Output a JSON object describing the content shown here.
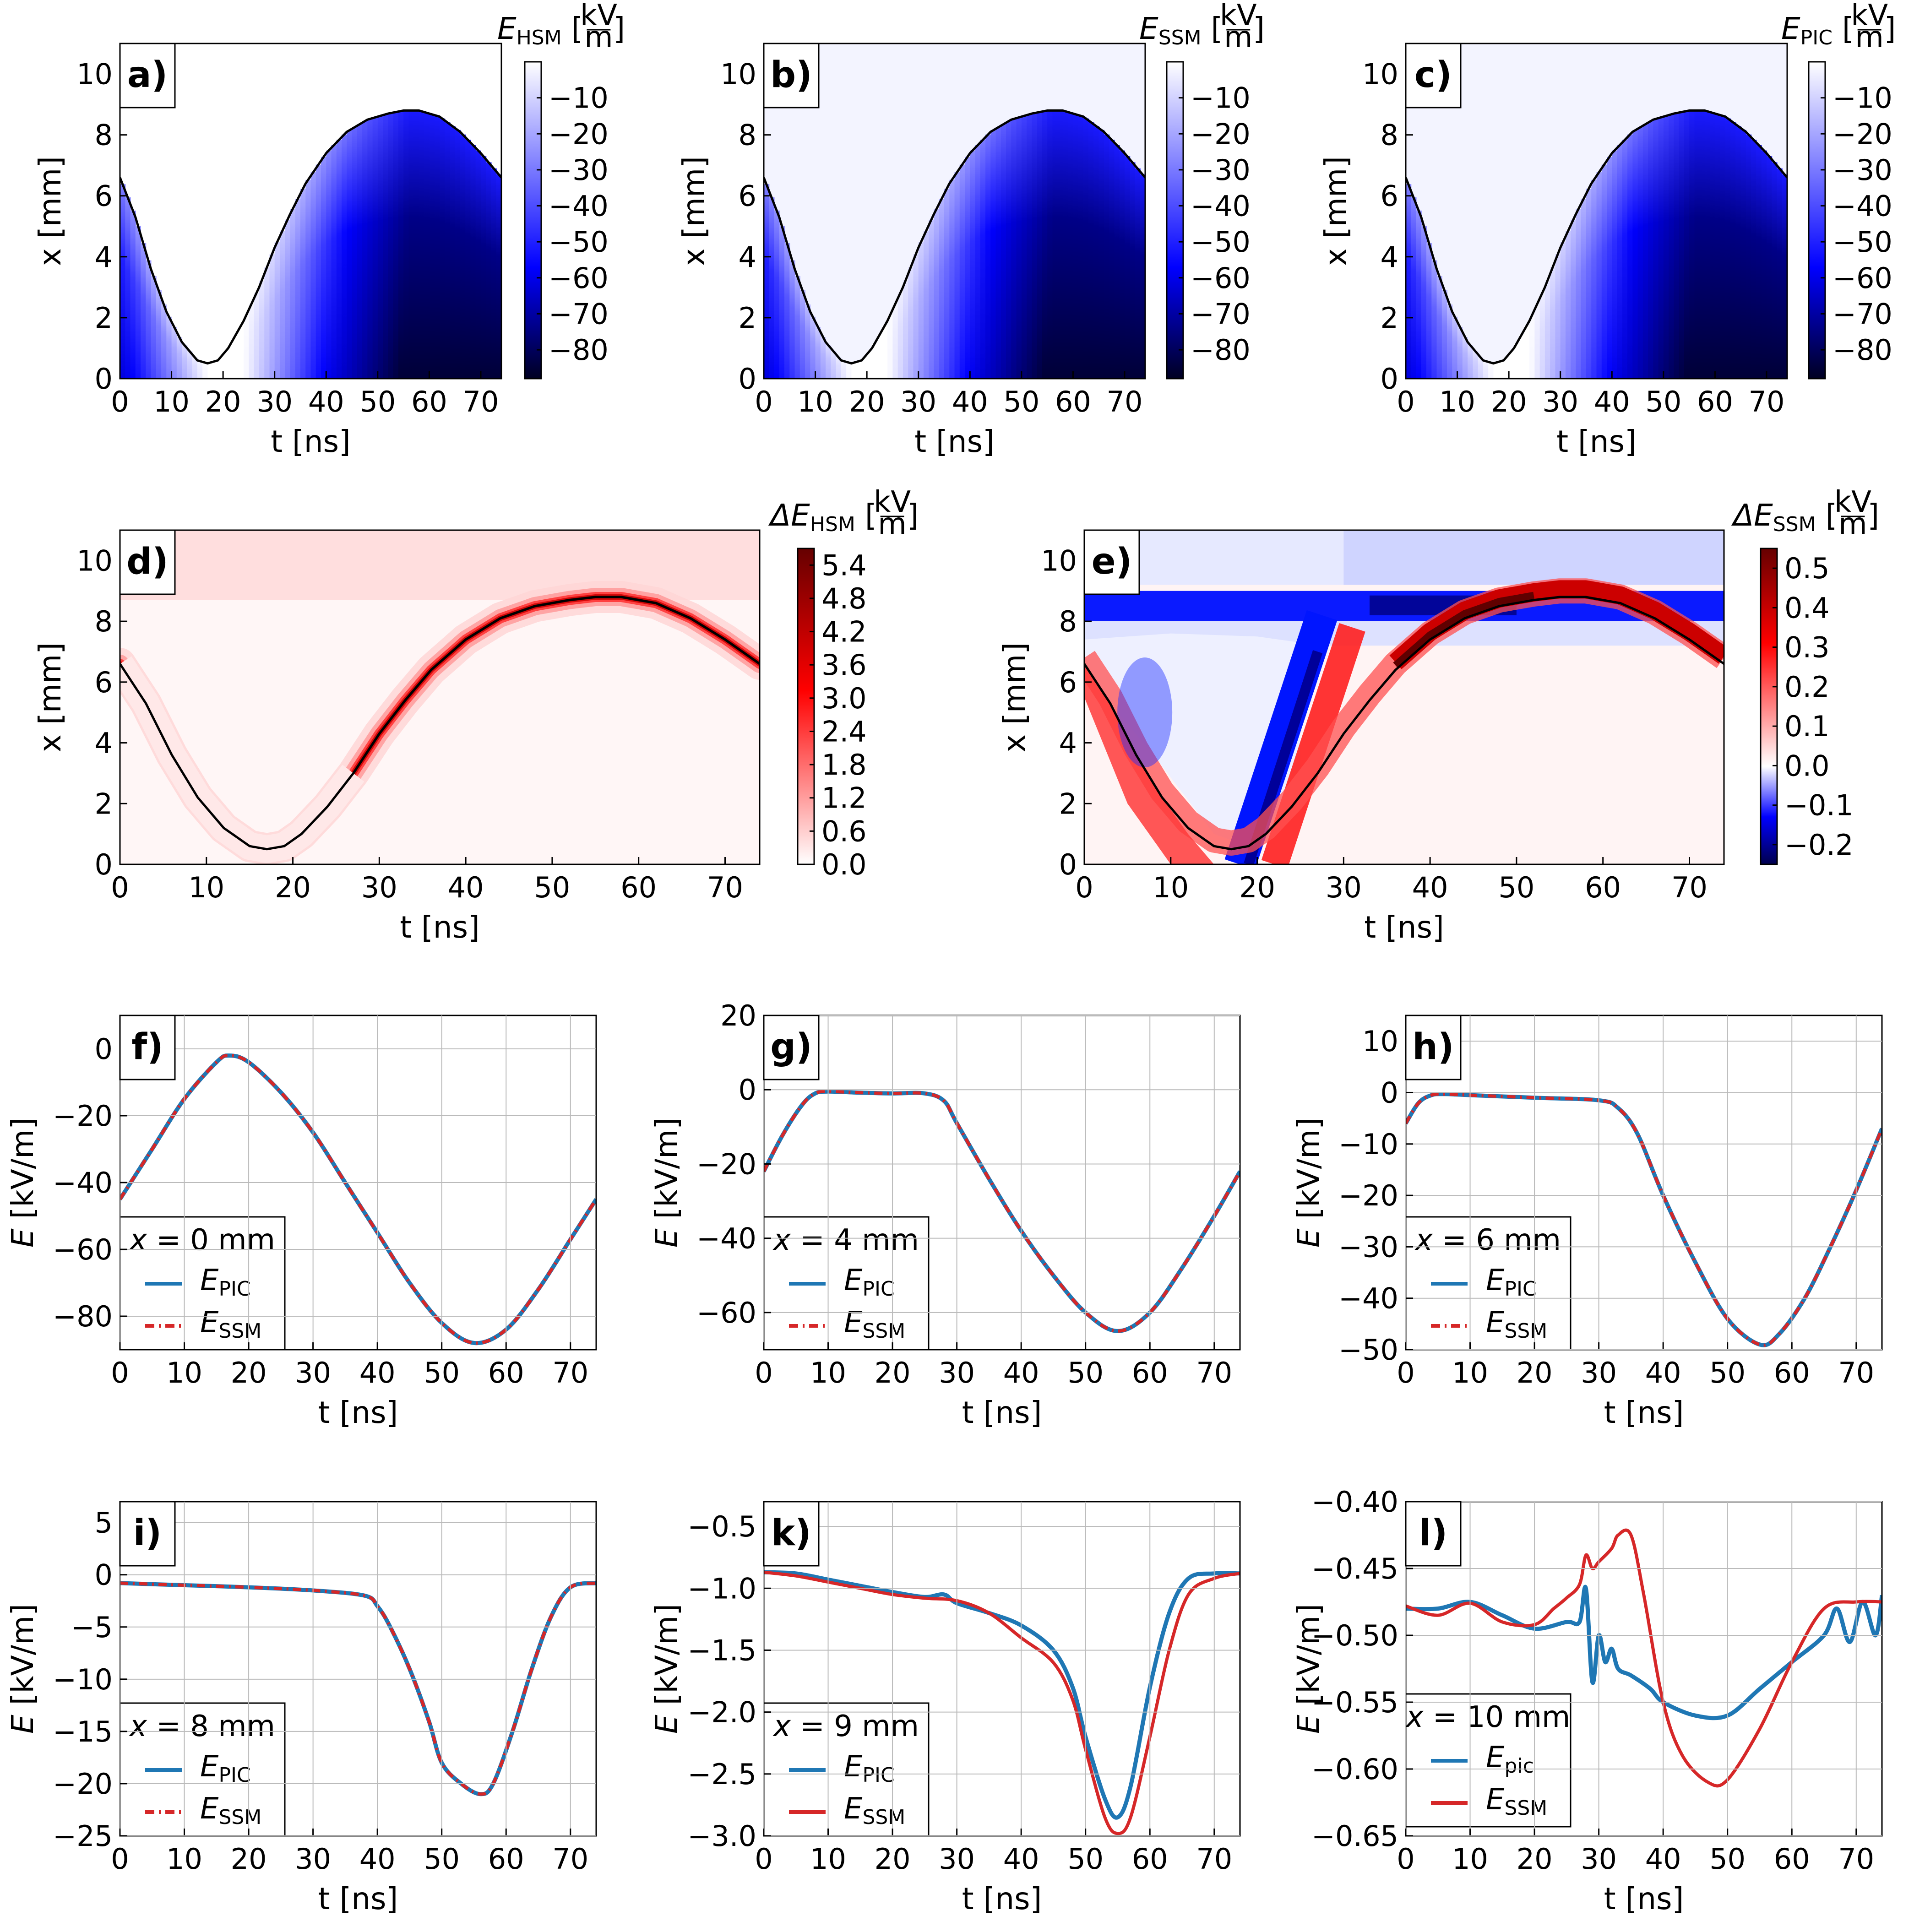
{
  "colors": {
    "blue_cmap": [
      "#000022",
      "#0000ff",
      "#ffffff"
    ],
    "seismic_cmap": [
      "#00004d",
      "#0000ff",
      "#ffffff",
      "#ff0000",
      "#660000"
    ],
    "pic_line": "#1f77b4",
    "ssm_line": "#d62728",
    "boundary": "#000000"
  },
  "chart_data": [
    {
      "id": "a",
      "type": "heatmap",
      "tag": "a)",
      "xlabel": "t [ns]",
      "ylabel": "x [mm]",
      "xlim": [
        0,
        74
      ],
      "ylim": [
        0,
        11
      ],
      "xticks": [
        "0",
        "10",
        "20",
        "30",
        "40",
        "50",
        "60",
        "70"
      ],
      "yticks": [
        "0",
        "2",
        "4",
        "6",
        "8",
        "10"
      ],
      "colorbar": {
        "label": "E_HSM [kV/m]",
        "label_main": "E",
        "label_sub": "HSM",
        "unit_num": "kV",
        "unit_den": "m",
        "range": [
          -88,
          0
        ],
        "ticks": [
          "−10",
          "−20",
          "−30",
          "−40",
          "−50",
          "−60",
          "−70",
          "−80"
        ],
        "cmap": "blue"
      }
    },
    {
      "id": "b",
      "type": "heatmap",
      "tag": "b)",
      "xlabel": "t [ns]",
      "ylabel": "x [mm]",
      "xlim": [
        0,
        74
      ],
      "ylim": [
        0,
        11
      ],
      "xticks": [
        "0",
        "10",
        "20",
        "30",
        "40",
        "50",
        "60",
        "70"
      ],
      "yticks": [
        "0",
        "2",
        "4",
        "6",
        "8",
        "10"
      ],
      "colorbar": {
        "label": "E_SSM [kV/m]",
        "label_main": "E",
        "label_sub": "SSM",
        "unit_num": "kV",
        "unit_den": "m",
        "range": [
          -88,
          0
        ],
        "ticks": [
          "−10",
          "−20",
          "−30",
          "−40",
          "−50",
          "−60",
          "−70",
          "−80"
        ],
        "cmap": "blue"
      }
    },
    {
      "id": "c",
      "type": "heatmap",
      "tag": "c)",
      "xlabel": "t [ns]",
      "ylabel": "x [mm]",
      "xlim": [
        0,
        74
      ],
      "ylim": [
        0,
        11
      ],
      "xticks": [
        "0",
        "10",
        "20",
        "30",
        "40",
        "50",
        "60",
        "70"
      ],
      "yticks": [
        "0",
        "2",
        "4",
        "6",
        "8",
        "10"
      ],
      "colorbar": {
        "label": "E_PIC [kV/m]",
        "label_main": "E",
        "label_sub": "PIC",
        "unit_num": "kV",
        "unit_den": "m",
        "range": [
          -88,
          0
        ],
        "ticks": [
          "−10",
          "−20",
          "−30",
          "−40",
          "−50",
          "−60",
          "−70",
          "−80"
        ],
        "cmap": "blue"
      }
    },
    {
      "id": "d",
      "type": "heatmap",
      "tag": "d)",
      "xlabel": "t [ns]",
      "ylabel": "x [mm]",
      "xlim": [
        0,
        74
      ],
      "ylim": [
        0,
        11
      ],
      "xticks": [
        "0",
        "10",
        "20",
        "30",
        "40",
        "50",
        "60",
        "70"
      ],
      "yticks": [
        "0",
        "2",
        "4",
        "6",
        "8",
        "10"
      ],
      "colorbar": {
        "label": "ΔE_HSM [kV/m]",
        "label_main": "ΔE",
        "label_sub": "HSM",
        "unit_num": "kV",
        "unit_den": "m",
        "range": [
          0,
          5.7
        ],
        "ticks": [
          "5.4",
          "4.8",
          "4.2",
          "3.6",
          "3.0",
          "2.4",
          "1.8",
          "1.2",
          "0.6",
          "0.0"
        ],
        "cmap": "red"
      }
    },
    {
      "id": "e",
      "type": "heatmap",
      "tag": "e)",
      "xlabel": "t [ns]",
      "ylabel": "x [mm]",
      "xlim": [
        0,
        74
      ],
      "ylim": [
        0,
        11
      ],
      "xticks": [
        "0",
        "10",
        "20",
        "30",
        "40",
        "50",
        "60",
        "70"
      ],
      "yticks": [
        "0",
        "2",
        "4",
        "6",
        "8",
        "10"
      ],
      "colorbar": {
        "label": "ΔE_SSM [kV/m]",
        "label_main": "ΔE",
        "label_sub": "SSM",
        "unit_num": "kV",
        "unit_den": "m",
        "range": [
          -0.25,
          0.55
        ],
        "ticks": [
          "0.5",
          "0.4",
          "0.3",
          "0.2",
          "0.1",
          "0.0",
          "−0.1",
          "−0.2"
        ],
        "cmap": "seismic"
      }
    },
    {
      "id": "f",
      "type": "line",
      "tag": "f)",
      "xlabel": "t [ns]",
      "ylabel": "E [kV/m]",
      "xlim": [
        0,
        74
      ],
      "ylim": [
        -90,
        10
      ],
      "xticks": [
        "0",
        "10",
        "20",
        "30",
        "40",
        "50",
        "60",
        "70"
      ],
      "yticks": [
        "0",
        "−20",
        "−40",
        "−60",
        "−80"
      ],
      "legend": {
        "title": "x = 0 mm",
        "title_var": "x",
        "title_rest": " = 0 mm",
        "entries": [
          {
            "main": "E",
            "sub": "PIC"
          },
          {
            "main": "E",
            "sub": "SSM"
          }
        ]
      },
      "series": [
        {
          "name": "E_PIC",
          "x": [
            0,
            5,
            10,
            15,
            17,
            20,
            25,
            30,
            35,
            40,
            45,
            50,
            55,
            60,
            65,
            70,
            74
          ],
          "values": [
            -45,
            -30,
            -15,
            -4,
            -2,
            -4,
            -13,
            -25,
            -40,
            -55,
            -70,
            -82,
            -88,
            -84,
            -72,
            -57,
            -45
          ]
        },
        {
          "name": "E_SSM",
          "x": [
            0,
            5,
            10,
            15,
            17,
            20,
            25,
            30,
            35,
            40,
            45,
            50,
            55,
            60,
            65,
            70,
            74
          ],
          "values": [
            -45,
            -30,
            -15,
            -4,
            -2,
            -4,
            -13,
            -25,
            -40,
            -55,
            -70,
            -82,
            -88,
            -84,
            -72,
            -57,
            -45
          ]
        }
      ]
    },
    {
      "id": "g",
      "type": "line",
      "tag": "g)",
      "xlabel": "t [ns]",
      "ylabel": "E [kV/m]",
      "xlim": [
        0,
        74
      ],
      "ylim": [
        -70,
        20
      ],
      "xticks": [
        "0",
        "10",
        "20",
        "30",
        "40",
        "50",
        "60",
        "70"
      ],
      "yticks": [
        "20",
        "0",
        "−20",
        "−40",
        "−60"
      ],
      "legend": {
        "title": "x = 4 mm",
        "title_var": "x",
        "title_rest": " = 4 mm",
        "entries": [
          {
            "main": "E",
            "sub": "PIC"
          },
          {
            "main": "E",
            "sub": "SSM"
          }
        ]
      },
      "series": [
        {
          "name": "E_PIC",
          "x": [
            0,
            3,
            6,
            8,
            10,
            15,
            20,
            25,
            28,
            30,
            35,
            40,
            45,
            50,
            55,
            60,
            65,
            70,
            74
          ],
          "values": [
            -22,
            -12,
            -4,
            -1,
            -0.5,
            -0.8,
            -1,
            -1,
            -3,
            -9,
            -24,
            -38,
            -50,
            -60,
            -65,
            -60,
            -48,
            -34,
            -22
          ]
        },
        {
          "name": "E_SSM",
          "x": [
            0,
            3,
            6,
            8,
            10,
            15,
            20,
            25,
            28,
            30,
            35,
            40,
            45,
            50,
            55,
            60,
            65,
            70,
            74
          ],
          "values": [
            -22,
            -12,
            -4,
            -1,
            -0.5,
            -0.8,
            -1,
            -1,
            -3,
            -9,
            -24,
            -38,
            -50,
            -60,
            -65,
            -60,
            -48,
            -34,
            -22
          ]
        }
      ]
    },
    {
      "id": "h",
      "type": "line",
      "tag": "h)",
      "xlabel": "t [ns]",
      "ylabel": "E [kV/m]",
      "xlim": [
        0,
        74
      ],
      "ylim": [
        -50,
        15
      ],
      "xticks": [
        "0",
        "10",
        "20",
        "30",
        "40",
        "50",
        "60",
        "70"
      ],
      "yticks": [
        "10",
        "0",
        "−10",
        "−20",
        "−30",
        "−40",
        "−50"
      ],
      "legend": {
        "title": "x = 6 mm",
        "title_var": "x",
        "title_rest": " = 6 mm",
        "entries": [
          {
            "main": "E",
            "sub": "PIC"
          },
          {
            "main": "E",
            "sub": "SSM"
          }
        ]
      },
      "series": [
        {
          "name": "E_PIC",
          "x": [
            0,
            2,
            4,
            6,
            10,
            20,
            30,
            33,
            36,
            40,
            45,
            50,
            55,
            58,
            62,
            66,
            70,
            74
          ],
          "values": [
            -6,
            -2,
            -0.5,
            -0.3,
            -0.5,
            -1,
            -1.5,
            -3,
            -8,
            -20,
            -33,
            -44,
            -49,
            -47,
            -40,
            -30,
            -19,
            -7
          ]
        },
        {
          "name": "E_SSM",
          "x": [
            0,
            2,
            4,
            6,
            10,
            20,
            30,
            33,
            36,
            40,
            45,
            50,
            55,
            58,
            62,
            66,
            70,
            74
          ],
          "values": [
            -6,
            -2,
            -0.5,
            -0.3,
            -0.5,
            -1,
            -1.5,
            -3,
            -8,
            -20,
            -33,
            -44,
            -49,
            -47,
            -40,
            -30,
            -19,
            -7
          ]
        }
      ]
    },
    {
      "id": "i",
      "type": "line",
      "tag": "i)",
      "xlabel": "t [ns]",
      "ylabel": "E [kV/m]",
      "xlim": [
        0,
        74
      ],
      "ylim": [
        -25,
        7
      ],
      "xticks": [
        "0",
        "10",
        "20",
        "30",
        "40",
        "50",
        "60",
        "70"
      ],
      "yticks": [
        "5",
        "0",
        "−5",
        "−10",
        "−15",
        "−20",
        "−25"
      ],
      "legend": {
        "title": "x = 8 mm",
        "title_var": "x",
        "title_rest": " = 8 mm",
        "entries": [
          {
            "main": "E",
            "sub": "PIC"
          },
          {
            "main": "E",
            "sub": "SSM"
          }
        ]
      },
      "series": [
        {
          "name": "E_PIC",
          "x": [
            0,
            10,
            20,
            30,
            38,
            40,
            42,
            45,
            48,
            50,
            53,
            56,
            58,
            61,
            64,
            67,
            70,
            74
          ],
          "values": [
            -0.8,
            -1,
            -1.2,
            -1.5,
            -2,
            -3,
            -5,
            -9,
            -14,
            -18,
            -20,
            -21,
            -20,
            -15,
            -9,
            -4,
            -1.2,
            -0.8
          ]
        },
        {
          "name": "E_SSM",
          "x": [
            0,
            10,
            20,
            30,
            38,
            40,
            42,
            45,
            48,
            50,
            53,
            56,
            58,
            61,
            64,
            67,
            70,
            74
          ],
          "values": [
            -0.8,
            -1,
            -1.2,
            -1.5,
            -2,
            -3,
            -5,
            -9,
            -14,
            -18,
            -20,
            -21,
            -20,
            -15,
            -9,
            -4,
            -1.2,
            -0.8
          ]
        }
      ]
    },
    {
      "id": "k",
      "type": "line",
      "tag": "k)",
      "xlabel": "t [ns]",
      "ylabel": "E [kV/m]",
      "xlim": [
        0,
        74
      ],
      "ylim": [
        -3.0,
        -0.3
      ],
      "xticks": [
        "0",
        "10",
        "20",
        "30",
        "40",
        "50",
        "60",
        "70"
      ],
      "yticks": [
        "−0.5",
        "−1.0",
        "−1.5",
        "−2.0",
        "−2.5",
        "−3.0"
      ],
      "legend": {
        "title": "x = 9 mm",
        "title_var": "x",
        "title_rest": " = 9 mm",
        "entries": [
          {
            "main": "E",
            "sub": "PIC"
          },
          {
            "main": "E",
            "sub": "SSM"
          }
        ]
      },
      "series": [
        {
          "name": "E_PIC",
          "x": [
            0,
            5,
            10,
            15,
            20,
            25,
            28,
            30,
            35,
            40,
            45,
            48,
            50,
            53,
            55,
            57,
            60,
            63,
            66,
            70,
            74
          ],
          "values": [
            -0.87,
            -0.88,
            -0.93,
            -0.98,
            -1.03,
            -1.07,
            -1.05,
            -1.12,
            -1.2,
            -1.3,
            -1.5,
            -1.8,
            -2.2,
            -2.7,
            -2.85,
            -2.6,
            -1.8,
            -1.2,
            -0.92,
            -0.88,
            -0.88
          ]
        },
        {
          "name": "E_SSM",
          "x": [
            0,
            5,
            10,
            15,
            20,
            25,
            30,
            35,
            40,
            45,
            48,
            50,
            53,
            55,
            57,
            60,
            63,
            66,
            70,
            74
          ],
          "values": [
            -0.87,
            -0.9,
            -0.95,
            -1.0,
            -1.05,
            -1.08,
            -1.1,
            -1.2,
            -1.4,
            -1.6,
            -1.9,
            -2.3,
            -2.85,
            -2.98,
            -2.85,
            -2.2,
            -1.5,
            -1.05,
            -0.92,
            -0.88
          ]
        }
      ]
    },
    {
      "id": "l",
      "type": "line",
      "tag": "l)",
      "xlabel": "t [ns]",
      "ylabel": "E [kV/m]",
      "xlim": [
        0,
        74
      ],
      "ylim": [
        -0.65,
        -0.4
      ],
      "xticks": [
        "0",
        "10",
        "20",
        "30",
        "40",
        "50",
        "60",
        "70"
      ],
      "yticks": [
        "−0.40",
        "−0.45",
        "−0.50",
        "−0.55",
        "−0.60",
        "−0.65"
      ],
      "legend": {
        "title": "x = 10 mm",
        "title_var": "x",
        "title_rest": " = 10 mm",
        "entries": [
          {
            "main": "E",
            "sub": "pic"
          },
          {
            "main": "E",
            "sub": "SSM"
          }
        ]
      },
      "series": [
        {
          "name": "E_pic",
          "x": [
            0,
            5,
            10,
            15,
            20,
            25,
            27,
            28,
            29,
            30,
            31,
            32,
            33,
            35,
            38,
            40,
            45,
            50,
            55,
            60,
            65,
            67,
            69,
            71,
            73,
            74
          ],
          "values": [
            -0.48,
            -0.48,
            -0.475,
            -0.485,
            -0.495,
            -0.49,
            -0.49,
            -0.465,
            -0.535,
            -0.5,
            -0.52,
            -0.51,
            -0.525,
            -0.53,
            -0.54,
            -0.55,
            -0.56,
            -0.56,
            -0.54,
            -0.52,
            -0.5,
            -0.48,
            -0.505,
            -0.475,
            -0.5,
            -0.47
          ]
        },
        {
          "name": "E_SSM",
          "x": [
            0,
            5,
            10,
            15,
            20,
            23,
            25,
            27,
            28,
            29,
            30,
            32,
            33,
            35,
            37,
            40,
            43,
            47,
            50,
            55,
            60,
            65,
            70,
            74
          ],
          "values": [
            -0.478,
            -0.485,
            -0.476,
            -0.49,
            -0.492,
            -0.48,
            -0.472,
            -0.462,
            -0.44,
            -0.45,
            -0.445,
            -0.435,
            -0.425,
            -0.425,
            -0.47,
            -0.55,
            -0.59,
            -0.61,
            -0.608,
            -0.57,
            -0.52,
            -0.48,
            -0.475,
            -0.475
          ]
        }
      ]
    }
  ]
}
